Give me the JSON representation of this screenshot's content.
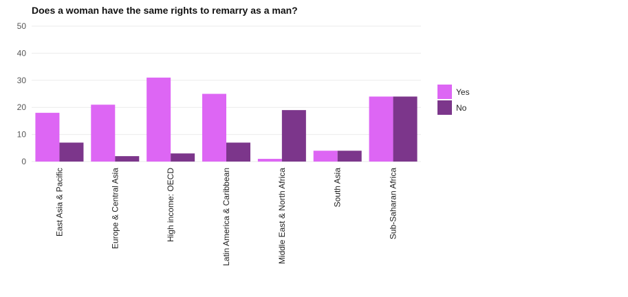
{
  "chart_data": {
    "type": "bar",
    "title": "Does a woman have the same rights to remarry as a man?",
    "xlabel": "",
    "ylabel": "",
    "ylim": [
      0,
      50
    ],
    "yticks": [
      0,
      10,
      20,
      30,
      40,
      50
    ],
    "grid": true,
    "legend_position": "right",
    "categories": [
      "East Asia & Pacific",
      "Europe & Central Asia",
      "High income: OECD",
      "Latin America & Caribbean",
      "Middle East & North Africa",
      "South Asia",
      "Sub-Saharan Africa"
    ],
    "series": [
      {
        "name": "Yes",
        "color": "#dd66f4",
        "values": [
          18,
          21,
          31,
          25,
          1,
          4,
          24
        ]
      },
      {
        "name": "No",
        "color": "#7c368b",
        "values": [
          7,
          2,
          3,
          7,
          19,
          4,
          24
        ]
      }
    ]
  }
}
